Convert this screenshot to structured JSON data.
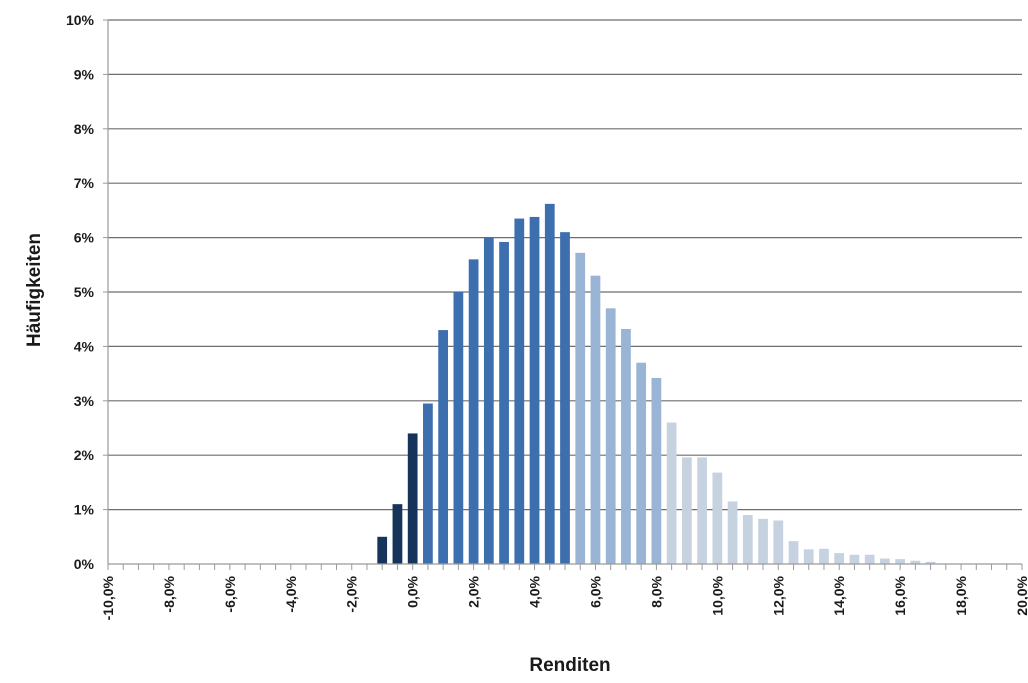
{
  "chart_data": {
    "type": "bar",
    "xlabel": "Renditen",
    "ylabel": "Häufigkeiten",
    "xlim": [
      -10,
      20
    ],
    "ylim": [
      0,
      10
    ],
    "bin_width": 0.5,
    "x_ticks": [
      -10,
      -8,
      -6,
      -4,
      -2,
      0,
      2,
      4,
      6,
      8,
      10,
      12,
      14,
      16,
      18,
      20
    ],
    "x_tick_labels": [
      "-10,0%",
      "-8,0%",
      "-6,0%",
      "-4,0%",
      "-2,0%",
      "0,0%",
      "2,0%",
      "4,0%",
      "6,0%",
      "8,0%",
      "10,0%",
      "12,0%",
      "14,0%",
      "16,0%",
      "18,0%",
      "20,0%"
    ],
    "y_ticks": [
      0,
      1,
      2,
      3,
      4,
      5,
      6,
      7,
      8,
      9,
      10
    ],
    "y_tick_labels": [
      "0%",
      "1%",
      "2%",
      "3%",
      "4%",
      "5%",
      "6%",
      "7%",
      "8%",
      "9%",
      "10%"
    ],
    "grid": "horizontal",
    "x": [
      -1.0,
      -0.5,
      0.0,
      0.5,
      1.0,
      1.5,
      2.0,
      2.5,
      3.0,
      3.5,
      4.0,
      4.5,
      5.0,
      5.5,
      6.0,
      6.5,
      7.0,
      7.5,
      8.0,
      8.5,
      9.0,
      9.5,
      10.0,
      10.5,
      11.0,
      11.5,
      12.0,
      12.5,
      13.0,
      13.5,
      14.0,
      14.5,
      15.0,
      15.5,
      16.0,
      16.5,
      17.0
    ],
    "values": [
      0.5,
      1.1,
      2.4,
      2.95,
      4.3,
      5.0,
      5.6,
      6.0,
      5.92,
      6.35,
      6.38,
      6.62,
      6.1,
      5.72,
      5.3,
      4.7,
      4.32,
      3.7,
      3.42,
      2.6,
      1.96,
      1.96,
      1.68,
      1.15,
      0.9,
      0.83,
      0.8,
      0.42,
      0.27,
      0.28,
      0.2,
      0.17,
      0.17,
      0.1,
      0.09,
      0.06,
      0.04
    ],
    "colors": {
      "dark": "#16345a",
      "mid": "#3d6ead",
      "light": "#99b4d4",
      "pale": "#c7d2e1",
      "grid": "#6e6e6e",
      "axis": "#9a9a9a"
    }
  }
}
